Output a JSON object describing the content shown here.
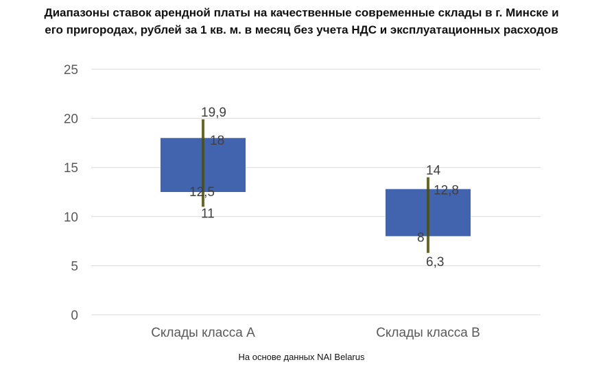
{
  "chart_data": {
    "type": "bar",
    "subtype": "floating-range",
    "title_lines": [
      "Диапазоны ставок арендной платы на качественные современные склады в г. Минске и",
      "его пригородах, рублей за 1 кв. м. в месяц без учета НДС и эксплуатационных расходов"
    ],
    "categories": [
      "Склады класса А",
      "Склады класса В"
    ],
    "ranges": [
      {
        "category": "Склады класса А",
        "min": 11,
        "low": 12.5,
        "high": 18,
        "max": 19.9,
        "min_label": "11",
        "low_label": "12,5",
        "high_label": "18",
        "max_label": "19,9"
      },
      {
        "category": "Склады класса В",
        "min": 6.3,
        "low": 8,
        "high": 12.8,
        "max": 14,
        "min_label": "6,3",
        "low_label": "8",
        "high_label": "12,8",
        "max_label": "14"
      }
    ],
    "ylim": [
      0,
      25
    ],
    "yticks": [
      0,
      5,
      10,
      15,
      20,
      25
    ],
    "grid": true,
    "legend": "none",
    "colors": {
      "box": "#4263ae",
      "whisker": "#4f4f00",
      "grid": "#d9d9d9",
      "label": "#404040"
    }
  },
  "source_note": "На основе данных NAI Belarus"
}
